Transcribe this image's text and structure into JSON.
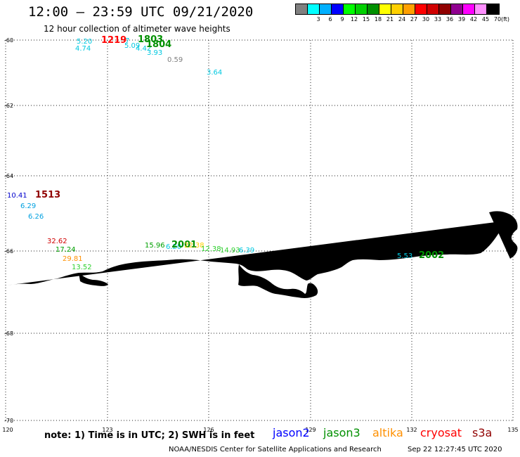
{
  "header": {
    "title": "12:00 – 23:59 UTC 09/21/2020",
    "subtitle": "12 hour collection of altimeter wave heights"
  },
  "color_scale": {
    "unit_label": "(ft)",
    "swatches": [
      {
        "color": "#808080",
        "label": ""
      },
      {
        "color": "#00ffff",
        "label": "3"
      },
      {
        "color": "#00b0ff",
        "label": "6"
      },
      {
        "color": "#0000ff",
        "label": "9"
      },
      {
        "color": "#00ff00",
        "label": "12"
      },
      {
        "color": "#00d000",
        "label": "15"
      },
      {
        "color": "#009000",
        "label": "18"
      },
      {
        "color": "#ffff00",
        "label": "21"
      },
      {
        "color": "#ffd000",
        "label": "24"
      },
      {
        "color": "#ffa000",
        "label": "27"
      },
      {
        "color": "#ff0000",
        "label": "30"
      },
      {
        "color": "#d00000",
        "label": "33"
      },
      {
        "color": "#900000",
        "label": "36"
      },
      {
        "color": "#900090",
        "label": "39"
      },
      {
        "color": "#ff00ff",
        "label": "42"
      },
      {
        "color": "#ff90ff",
        "label": "45"
      },
      {
        "color": "#000000",
        "label": "70"
      }
    ]
  },
  "axes": {
    "lat_ticks": [
      "-60",
      "-62",
      "-64",
      "-66",
      "-68",
      "-70"
    ],
    "lon_ticks": [
      "120",
      "123",
      "126",
      "129",
      "132",
      "135"
    ]
  },
  "observations": [
    {
      "text": "5.20",
      "color": "#00c8e0"
    },
    {
      "text": "4.74",
      "color": "#00c8e0"
    },
    {
      "text": "1219",
      "color": "#ff0000",
      "time": true
    },
    {
      "text": "7",
      "color": "#00c8e0"
    },
    {
      "text": "1803",
      "color": "#009000",
      "time": true
    },
    {
      "text": "5.09",
      "color": "#00c8e0"
    },
    {
      "text": "4.42",
      "color": "#00c8e0"
    },
    {
      "text": "1804",
      "color": "#009000",
      "time": true
    },
    {
      "text": "3.93",
      "color": "#00c8e0"
    },
    {
      "text": "0.59",
      "color": "#808080"
    },
    {
      "text": "3.64",
      "color": "#00c8e0"
    },
    {
      "text": "10.41",
      "color": "#0000cc"
    },
    {
      "text": "1513",
      "color": "#900000",
      "time": true
    },
    {
      "text": "6.29",
      "color": "#00a0e0"
    },
    {
      "text": "6.26",
      "color": "#00a0e0"
    },
    {
      "text": "32.62",
      "color": "#d00000"
    },
    {
      "text": "17.24",
      "color": "#00a000"
    },
    {
      "text": "29.81",
      "color": "#ff9000"
    },
    {
      "text": "13.52",
      "color": "#30d030"
    },
    {
      "text": "15.96",
      "color": "#00a000"
    },
    {
      "text": "6.20",
      "color": "#00c8e0"
    },
    {
      "text": "2001",
      "color": "#009000",
      "time": true
    },
    {
      "text": "22.38",
      "color": "#ffd000"
    },
    {
      "text": "12.38",
      "color": "#30d030"
    },
    {
      "text": "14.93",
      "color": "#30d030"
    },
    {
      "text": "6.39",
      "color": "#00c8e0"
    },
    {
      "text": "5.53",
      "color": "#00c8e0"
    },
    {
      "text": "2002",
      "color": "#009000",
      "time": true
    }
  ],
  "footer": {
    "note": "note:  1) Time is in UTC;  2) SWH is in feet",
    "satellites": [
      {
        "name": "jason2",
        "color": "#0000ff"
      },
      {
        "name": "jason3",
        "color": "#009000"
      },
      {
        "name": "altika",
        "color": "#ff9000"
      },
      {
        "name": "cryosat",
        "color": "#ff0000"
      },
      {
        "name": "s3a",
        "color": "#900000"
      }
    ],
    "credit": "NOAA/NESDIS Center for Satellite Applications and Research",
    "timestamp": "Sep 22 12:27:45 UTC 2020"
  }
}
